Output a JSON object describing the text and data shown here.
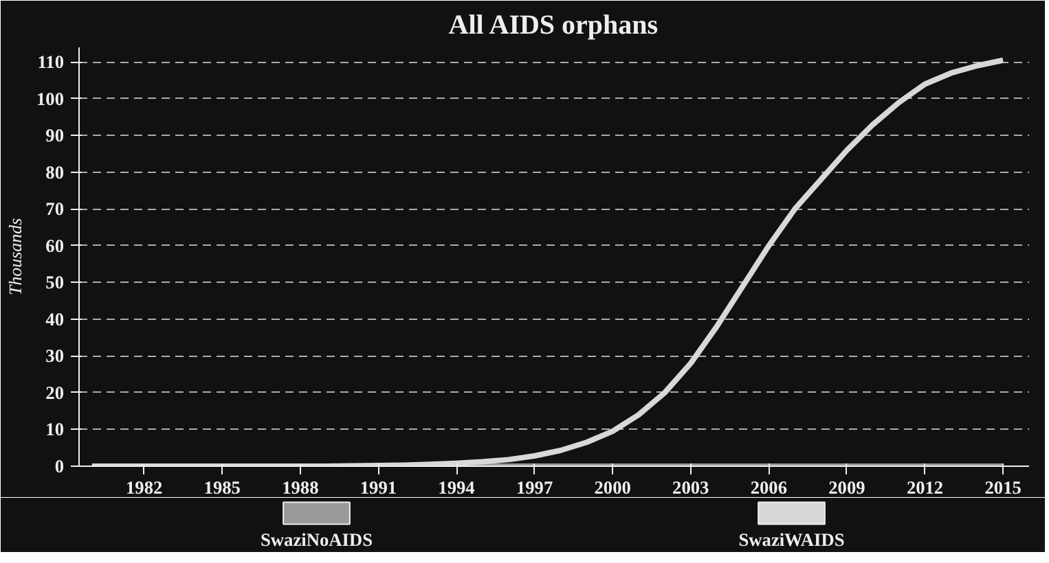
{
  "chart_data": {
    "type": "line",
    "title": "All AIDS orphans",
    "ylabel": "Thousands",
    "x": [
      1980,
      1981,
      1982,
      1983,
      1984,
      1985,
      1986,
      1987,
      1988,
      1989,
      1990,
      1991,
      1992,
      1993,
      1994,
      1995,
      1996,
      1997,
      1998,
      1999,
      2000,
      2001,
      2002,
      2003,
      2004,
      2005,
      2006,
      2007,
      2008,
      2009,
      2010,
      2011,
      2012,
      2013,
      2014,
      2015
    ],
    "series": [
      {
        "name": "SwaziNoAIDS",
        "color": "#9a9a9a",
        "values": [
          0,
          0,
          0,
          0,
          0,
          0,
          0,
          0,
          0,
          0,
          0,
          0,
          0,
          0,
          0,
          0,
          0,
          0,
          0,
          0,
          0,
          0,
          0,
          0,
          0,
          0,
          0,
          0,
          0,
          0,
          0,
          0,
          0,
          0,
          0,
          0
        ]
      },
      {
        "name": "SwaziWAIDS",
        "color": "#d8d8d8",
        "values": [
          0,
          0,
          0,
          0,
          0,
          0,
          0,
          0,
          0,
          0,
          0.1,
          0.2,
          0.3,
          0.5,
          0.8,
          1.2,
          1.8,
          2.8,
          4.3,
          6.5,
          9.5,
          14,
          20,
          28,
          38,
          49,
          60,
          70,
          78,
          86,
          93,
          99,
          104,
          107,
          109,
          110.5
        ]
      }
    ],
    "xlim": [
      1979.5,
      2016
    ],
    "xticks": [
      1982,
      1985,
      1988,
      1991,
      1994,
      1997,
      2000,
      2003,
      2006,
      2009,
      2012,
      2015
    ],
    "ylim": [
      0,
      114
    ],
    "yticks": [
      0,
      10,
      20,
      30,
      40,
      50,
      60,
      70,
      80,
      90,
      100,
      110
    ],
    "grid": "y",
    "legend": "bottom",
    "line_style": "solid",
    "marker": "none"
  }
}
